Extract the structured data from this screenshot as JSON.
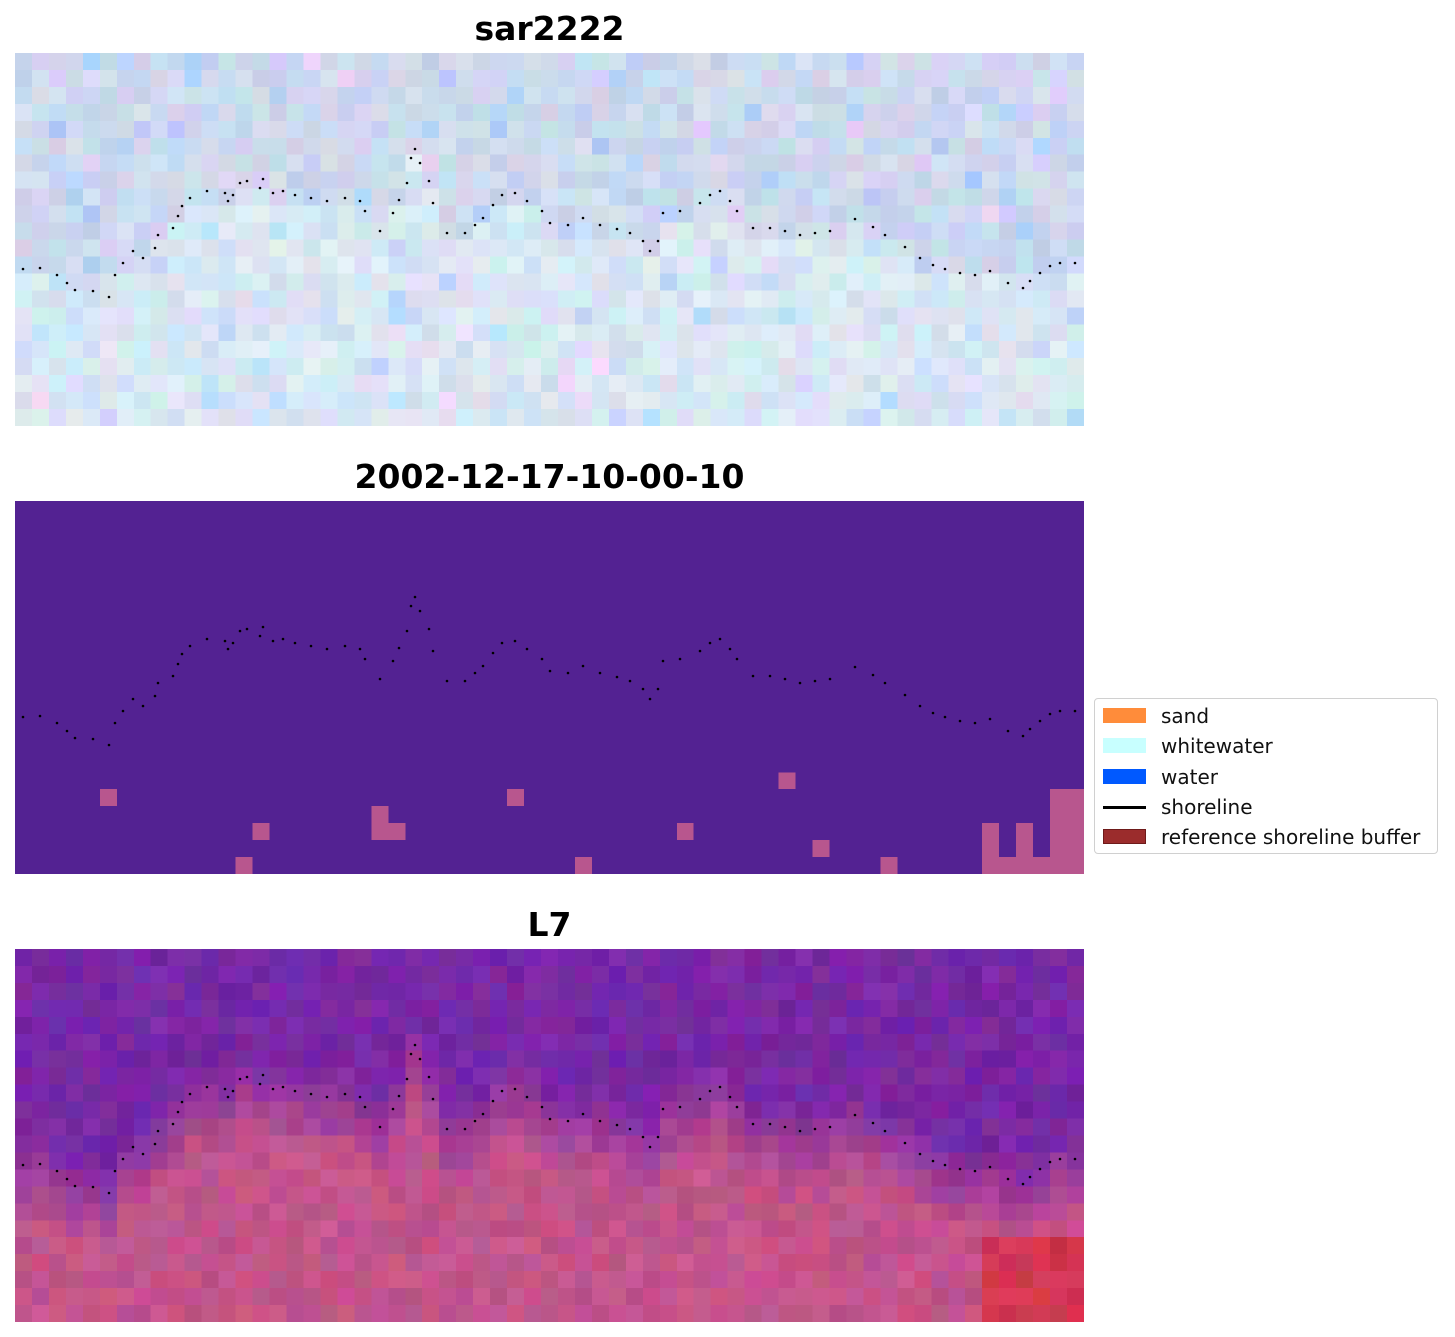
{
  "panels": [
    {
      "title": "sar2222",
      "style": "sar"
    },
    {
      "title": "2002-12-17-10-00-10",
      "style": "classified"
    },
    {
      "title": "L7",
      "style": "l7"
    }
  ],
  "legend": {
    "items": [
      {
        "label": "sand",
        "color": "#ff8c3a",
        "kind": "patch"
      },
      {
        "label": "whitewater",
        "color": "#c8ffff",
        "kind": "patch"
      },
      {
        "label": "water",
        "color": "#0059ff",
        "kind": "patch"
      },
      {
        "label": "shoreline",
        "color": "#000000",
        "kind": "line"
      },
      {
        "label": "reference shoreline buffer",
        "color": "#9b2c2c",
        "kind": "patch"
      }
    ]
  },
  "colors": {
    "classified_background": "#532292",
    "classified_buffer_pixels": "#b8568e",
    "shoreline_dots": "#000000"
  }
}
